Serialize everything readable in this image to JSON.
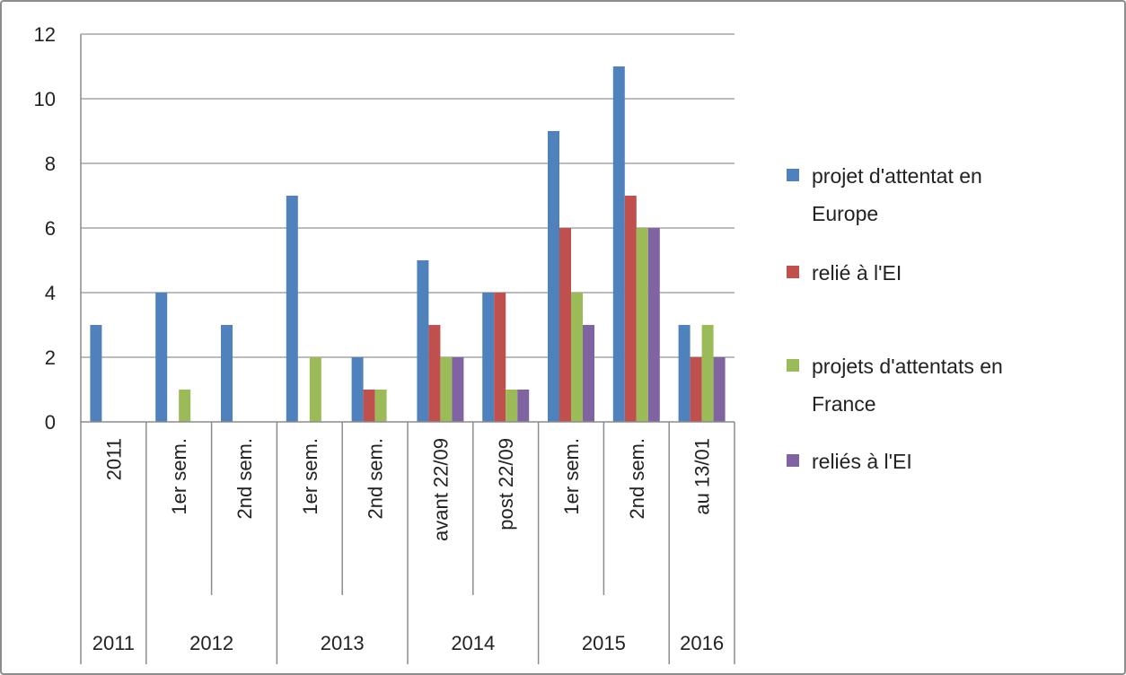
{
  "chart_data": {
    "type": "bar",
    "title": "",
    "xlabel": "",
    "ylabel": "",
    "ylim": [
      0,
      12
    ],
    "yticks": [
      0,
      2,
      4,
      6,
      8,
      10,
      12
    ],
    "grid": true,
    "legend_position": "right",
    "categories": [
      "2011",
      "1er sem.",
      "2nd sem.",
      "1er sem.",
      "2nd sem.",
      "avant 22/09",
      "post 22/09",
      "1er sem.",
      "2nd sem.",
      "au 13/01"
    ],
    "groups": [
      {
        "label": "2011",
        "span": 1
      },
      {
        "label": "2012",
        "span": 2
      },
      {
        "label": "2013",
        "span": 2
      },
      {
        "label": "2014",
        "span": 2
      },
      {
        "label": "2015",
        "span": 2
      },
      {
        "label": "2016",
        "span": 1
      }
    ],
    "series": [
      {
        "name": "projet d'attentat en Europe",
        "name_lines": [
          "projet d'attentat en",
          "Europe"
        ],
        "color": "#4F81BD",
        "values": [
          3,
          4,
          3,
          7,
          2,
          5,
          4,
          9,
          11,
          3
        ]
      },
      {
        "name": "relié à l'EI",
        "name_lines": [
          "relié à l'EI"
        ],
        "color": "#C0504D",
        "values": [
          0,
          0,
          0,
          0,
          1,
          3,
          4,
          6,
          7,
          2
        ]
      },
      {
        "name": "projets d'attentats en France",
        "name_lines": [
          "projets d'attentats en",
          "France"
        ],
        "color": "#9BBB59",
        "values": [
          0,
          1,
          0,
          2,
          1,
          2,
          1,
          4,
          6,
          3
        ]
      },
      {
        "name": "reliés à l'EI",
        "name_lines": [
          "reliés à l'EI"
        ],
        "color": "#8064A2",
        "values": [
          0,
          0,
          0,
          0,
          0,
          2,
          1,
          3,
          6,
          2
        ]
      }
    ]
  }
}
